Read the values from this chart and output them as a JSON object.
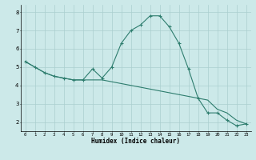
{
  "xlabel": "Humidex (Indice chaleur)",
  "x_values": [
    0,
    1,
    2,
    3,
    4,
    5,
    6,
    7,
    8,
    9,
    10,
    11,
    12,
    13,
    14,
    15,
    16,
    17,
    18,
    19,
    20,
    21,
    22,
    23
  ],
  "line1_y": [
    5.3,
    5.0,
    4.7,
    4.5,
    4.4,
    4.3,
    4.3,
    4.9,
    4.4,
    5.0,
    6.3,
    7.0,
    7.3,
    7.8,
    7.8,
    7.2,
    6.3,
    4.9,
    3.3,
    2.5,
    2.5,
    2.1,
    1.8,
    1.9
  ],
  "line2_y": [
    5.3,
    5.0,
    4.7,
    4.5,
    4.4,
    4.3,
    4.3,
    4.3,
    4.3,
    4.2,
    4.1,
    4.0,
    3.9,
    3.8,
    3.7,
    3.6,
    3.5,
    3.4,
    3.3,
    3.2,
    2.7,
    2.5,
    2.1,
    1.9
  ],
  "line_color": "#2e7d6e",
  "bg_color": "#cce9e9",
  "grid_color": "#aacfcf",
  "ylim": [
    1.5,
    8.4
  ],
  "xlim": [
    -0.5,
    23.5
  ],
  "yticks": [
    2,
    3,
    4,
    5,
    6,
    7,
    8
  ],
  "xticks": [
    0,
    1,
    2,
    3,
    4,
    5,
    6,
    7,
    8,
    9,
    10,
    11,
    12,
    13,
    14,
    15,
    16,
    17,
    18,
    19,
    20,
    21,
    22,
    23
  ]
}
